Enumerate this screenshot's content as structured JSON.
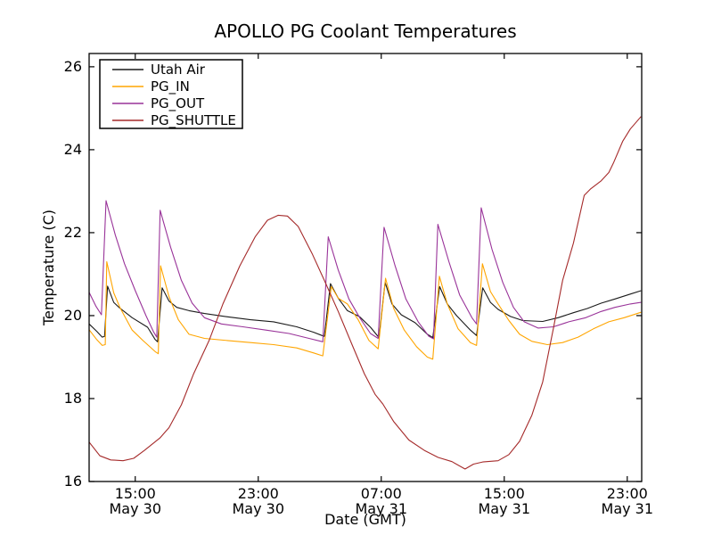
{
  "figure": {
    "background": "#ffffff",
    "frame_color": "#000000"
  },
  "chart_data": {
    "type": "line",
    "title": "APOLLO PG Coolant Temperatures",
    "xlabel": "Date (GMT)",
    "ylabel": "Temperature (C)",
    "grid": false,
    "legend_position": "upper-left",
    "x_unit": "hours from first visible sample (12:00 May 30 GMT)",
    "xlim_hours": [
      0,
      35.94
    ],
    "ylim": [
      16,
      26.32
    ],
    "x_ticks": [
      {
        "t": 3,
        "time": "15:00",
        "date": "May 30"
      },
      {
        "t": 11,
        "time": "23:00",
        "date": "May 30"
      },
      {
        "t": 19,
        "time": "07:00",
        "date": "May 31"
      },
      {
        "t": 27,
        "time": "15:00",
        "date": "May 31"
      },
      {
        "t": 35,
        "time": "23:00",
        "date": "May 31"
      }
    ],
    "y_ticks": [
      {
        "v": 16,
        "label": "16"
      },
      {
        "v": 18,
        "label": "18"
      },
      {
        "v": 20,
        "label": "20"
      },
      {
        "v": 22,
        "label": "22"
      },
      {
        "v": 24,
        "label": "24"
      },
      {
        "v": 26,
        "label": "26"
      }
    ],
    "series": [
      {
        "name": "Utah Air",
        "color": "#1a1a1a",
        "points": [
          [
            0,
            19.8
          ],
          [
            0.5,
            19.62
          ],
          [
            0.85,
            19.48
          ],
          [
            1.0,
            19.5
          ],
          [
            1.2,
            20.71
          ],
          [
            1.6,
            20.32
          ],
          [
            2.0,
            20.18
          ],
          [
            2.8,
            19.95
          ],
          [
            3.8,
            19.72
          ],
          [
            4.3,
            19.42
          ],
          [
            4.45,
            19.37
          ],
          [
            4.75,
            20.67
          ],
          [
            5.2,
            20.35
          ],
          [
            5.7,
            20.2
          ],
          [
            6.5,
            20.12
          ],
          [
            7.5,
            20.05
          ],
          [
            9.0,
            19.97
          ],
          [
            10.5,
            19.9
          ],
          [
            12.0,
            19.85
          ],
          [
            13.5,
            19.73
          ],
          [
            14.6,
            19.6
          ],
          [
            15.15,
            19.52
          ],
          [
            15.3,
            19.5
          ],
          [
            15.7,
            20.77
          ],
          [
            16.2,
            20.42
          ],
          [
            16.8,
            20.12
          ],
          [
            17.6,
            19.97
          ],
          [
            18.3,
            19.72
          ],
          [
            18.85,
            19.47
          ],
          [
            19.25,
            20.8
          ],
          [
            19.7,
            20.28
          ],
          [
            20.3,
            20.02
          ],
          [
            21.2,
            19.83
          ],
          [
            22.0,
            19.55
          ],
          [
            22.35,
            19.47
          ],
          [
            22.8,
            20.7
          ],
          [
            23.3,
            20.28
          ],
          [
            23.9,
            20.0
          ],
          [
            24.8,
            19.65
          ],
          [
            25.2,
            19.52
          ],
          [
            25.6,
            20.67
          ],
          [
            26.1,
            20.32
          ],
          [
            26.6,
            20.15
          ],
          [
            27.4,
            19.98
          ],
          [
            28.2,
            19.88
          ],
          [
            29.5,
            19.86
          ],
          [
            30.5,
            19.95
          ],
          [
            31.5,
            20.07
          ],
          [
            32.4,
            20.17
          ],
          [
            33.3,
            20.3
          ],
          [
            34.2,
            20.4
          ],
          [
            35.2,
            20.52
          ],
          [
            35.9,
            20.6
          ]
        ]
      },
      {
        "name": "PG_IN",
        "color": "#ffa500",
        "points": [
          [
            0,
            19.66
          ],
          [
            0.5,
            19.42
          ],
          [
            0.85,
            19.28
          ],
          [
            1.05,
            19.3
          ],
          [
            1.15,
            21.3
          ],
          [
            1.6,
            20.55
          ],
          [
            2.0,
            20.2
          ],
          [
            2.8,
            19.65
          ],
          [
            3.5,
            19.4
          ],
          [
            4.3,
            19.13
          ],
          [
            4.5,
            19.08
          ],
          [
            4.65,
            21.2
          ],
          [
            5.2,
            20.45
          ],
          [
            5.8,
            19.9
          ],
          [
            6.5,
            19.55
          ],
          [
            7.5,
            19.45
          ],
          [
            9.0,
            19.4
          ],
          [
            10.5,
            19.35
          ],
          [
            12.0,
            19.3
          ],
          [
            13.5,
            19.22
          ],
          [
            14.6,
            19.1
          ],
          [
            15.2,
            19.03
          ],
          [
            15.75,
            20.7
          ],
          [
            16.2,
            20.42
          ],
          [
            16.8,
            20.28
          ],
          [
            17.5,
            19.9
          ],
          [
            18.2,
            19.4
          ],
          [
            18.8,
            19.2
          ],
          [
            19.28,
            20.9
          ],
          [
            19.8,
            20.18
          ],
          [
            20.5,
            19.65
          ],
          [
            21.3,
            19.25
          ],
          [
            22.0,
            19.0
          ],
          [
            22.35,
            18.95
          ],
          [
            22.78,
            20.95
          ],
          [
            23.3,
            20.28
          ],
          [
            24.0,
            19.68
          ],
          [
            24.8,
            19.35
          ],
          [
            25.2,
            19.28
          ],
          [
            25.58,
            21.25
          ],
          [
            26.1,
            20.58
          ],
          [
            26.6,
            20.28
          ],
          [
            27.3,
            19.88
          ],
          [
            28.0,
            19.55
          ],
          [
            28.8,
            19.38
          ],
          [
            29.8,
            19.3
          ],
          [
            30.8,
            19.35
          ],
          [
            31.8,
            19.48
          ],
          [
            32.8,
            19.68
          ],
          [
            33.8,
            19.85
          ],
          [
            34.8,
            19.95
          ],
          [
            35.9,
            20.08
          ]
        ]
      },
      {
        "name": "PG_OUT",
        "color": "#993399",
        "points": [
          [
            0,
            20.56
          ],
          [
            0.45,
            20.22
          ],
          [
            0.8,
            20.02
          ],
          [
            1.1,
            22.77
          ],
          [
            1.7,
            21.95
          ],
          [
            2.3,
            21.25
          ],
          [
            3.0,
            20.6
          ],
          [
            3.7,
            20.0
          ],
          [
            4.2,
            19.6
          ],
          [
            4.4,
            19.48
          ],
          [
            4.62,
            22.54
          ],
          [
            5.3,
            21.65
          ],
          [
            6.0,
            20.85
          ],
          [
            6.7,
            20.3
          ],
          [
            7.5,
            19.95
          ],
          [
            8.6,
            19.8
          ],
          [
            10.0,
            19.73
          ],
          [
            11.5,
            19.65
          ],
          [
            13.0,
            19.57
          ],
          [
            14.3,
            19.45
          ],
          [
            15.2,
            19.37
          ],
          [
            15.55,
            21.9
          ],
          [
            16.2,
            21.1
          ],
          [
            16.9,
            20.4
          ],
          [
            17.6,
            19.95
          ],
          [
            18.3,
            19.57
          ],
          [
            18.8,
            19.45
          ],
          [
            19.18,
            22.13
          ],
          [
            19.9,
            21.2
          ],
          [
            20.6,
            20.4
          ],
          [
            21.4,
            19.85
          ],
          [
            22.1,
            19.5
          ],
          [
            22.4,
            19.44
          ],
          [
            22.68,
            22.2
          ],
          [
            23.4,
            21.3
          ],
          [
            24.1,
            20.5
          ],
          [
            24.9,
            19.95
          ],
          [
            25.2,
            19.8
          ],
          [
            25.5,
            22.6
          ],
          [
            26.2,
            21.6
          ],
          [
            26.9,
            20.8
          ],
          [
            27.6,
            20.2
          ],
          [
            28.3,
            19.85
          ],
          [
            29.2,
            19.7
          ],
          [
            30.2,
            19.73
          ],
          [
            31.2,
            19.85
          ],
          [
            32.3,
            19.95
          ],
          [
            33.3,
            20.1
          ],
          [
            34.2,
            20.2
          ],
          [
            35.2,
            20.28
          ],
          [
            35.9,
            20.32
          ]
        ]
      },
      {
        "name": "PG_SHUTTLE",
        "color": "#a52a2a",
        "points": [
          [
            0,
            16.95
          ],
          [
            0.7,
            16.62
          ],
          [
            1.4,
            16.52
          ],
          [
            2.2,
            16.5
          ],
          [
            2.9,
            16.56
          ],
          [
            3.6,
            16.75
          ],
          [
            4.6,
            17.05
          ],
          [
            5.2,
            17.3
          ],
          [
            6.0,
            17.85
          ],
          [
            6.8,
            18.6
          ],
          [
            7.8,
            19.4
          ],
          [
            8.7,
            20.28
          ],
          [
            9.8,
            21.2
          ],
          [
            10.8,
            21.9
          ],
          [
            11.6,
            22.3
          ],
          [
            12.3,
            22.42
          ],
          [
            12.9,
            22.4
          ],
          [
            13.6,
            22.15
          ],
          [
            14.5,
            21.5
          ],
          [
            15.3,
            20.85
          ],
          [
            16.2,
            20.1
          ],
          [
            17.1,
            19.3
          ],
          [
            17.9,
            18.6
          ],
          [
            18.6,
            18.1
          ],
          [
            19.1,
            17.87
          ],
          [
            19.8,
            17.45
          ],
          [
            20.8,
            17.0
          ],
          [
            21.8,
            16.75
          ],
          [
            22.7,
            16.58
          ],
          [
            23.6,
            16.48
          ],
          [
            24.45,
            16.3
          ],
          [
            25.0,
            16.42
          ],
          [
            25.6,
            16.47
          ],
          [
            26.6,
            16.5
          ],
          [
            27.3,
            16.65
          ],
          [
            28.0,
            16.97
          ],
          [
            28.8,
            17.6
          ],
          [
            29.5,
            18.4
          ],
          [
            30.2,
            19.7
          ],
          [
            30.8,
            20.85
          ],
          [
            31.5,
            21.75
          ],
          [
            32.2,
            22.9
          ],
          [
            32.6,
            23.05
          ],
          [
            33.3,
            23.25
          ],
          [
            33.8,
            23.45
          ],
          [
            34.1,
            23.68
          ],
          [
            34.7,
            24.2
          ],
          [
            35.2,
            24.5
          ],
          [
            35.9,
            24.8
          ]
        ]
      }
    ]
  }
}
